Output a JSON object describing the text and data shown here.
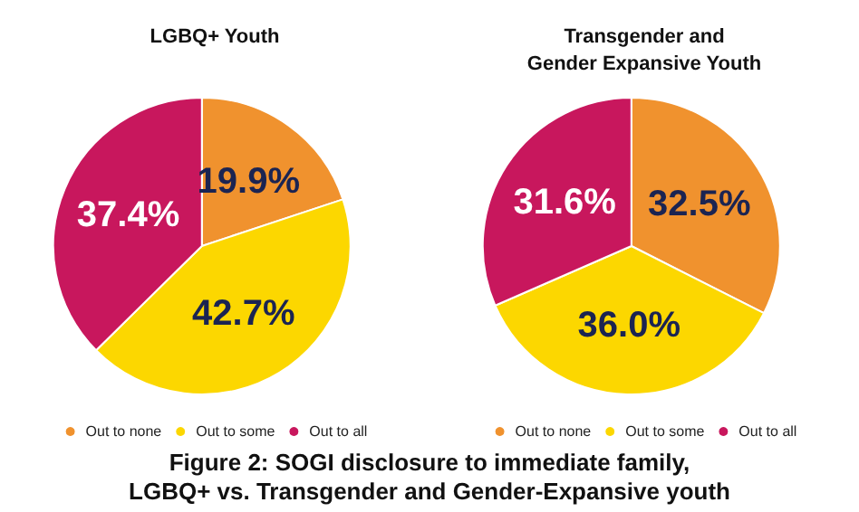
{
  "chart_data": [
    {
      "type": "pie",
      "title": "LGBQ+ Youth",
      "categories": [
        "Out to none",
        "Out to some",
        "Out to all"
      ],
      "values": [
        19.9,
        42.7,
        37.4
      ],
      "value_labels": [
        "19.9%",
        "42.7%",
        "37.4%"
      ],
      "colors": [
        "#f0922e",
        "#fcd700",
        "#c8175d"
      ],
      "legend": "bottom"
    },
    {
      "type": "pie",
      "title": "Transgender and\nGender Expansive Youth",
      "categories": [
        "Out to none",
        "Out to some",
        "Out to all"
      ],
      "values": [
        32.5,
        36.0,
        31.6
      ],
      "value_labels": [
        "32.5%",
        "36.0%",
        "31.6%"
      ],
      "colors": [
        "#f0922e",
        "#fcd700",
        "#c8175d"
      ],
      "legend": "bottom"
    },
    {
      "type": "other",
      "title": "Figure 2: SOGI disclosure to immediate family,\nLGBQ+ vs. Transgender and Gender-Expansive youth"
    }
  ]
}
